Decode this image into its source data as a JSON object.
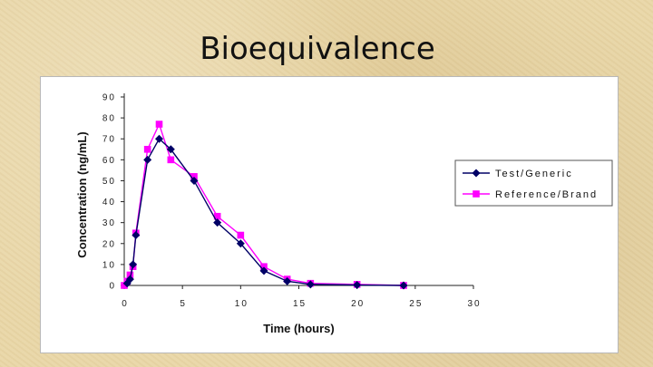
{
  "slide": {
    "title": "Bioequivalence"
  },
  "chart_data": {
    "type": "line",
    "xlabel": "Time (hours)",
    "ylabel": "Concentration (ng/mL)",
    "xlim": [
      0,
      30
    ],
    "ylim": [
      0,
      90
    ],
    "xticks": [
      0,
      5,
      10,
      15,
      20,
      25,
      30
    ],
    "yticks": [
      0,
      10,
      20,
      30,
      40,
      50,
      60,
      70,
      80,
      90
    ],
    "grid": false,
    "legend_position": "right",
    "series": [
      {
        "name": "Test/Generic",
        "color": "#000066",
        "marker": "diamond",
        "points": [
          [
            0.25,
            1
          ],
          [
            0.5,
            3
          ],
          [
            0.75,
            10
          ],
          [
            1,
            24
          ],
          [
            2,
            60
          ],
          [
            3,
            70
          ],
          [
            4,
            65
          ],
          [
            6,
            50
          ],
          [
            8,
            30
          ],
          [
            10,
            20
          ],
          [
            12,
            7
          ],
          [
            14,
            2
          ],
          [
            16,
            0.5
          ],
          [
            20,
            0.2
          ],
          [
            24,
            0
          ]
        ]
      },
      {
        "name": "Reference/Brand",
        "color": "#ff00ff",
        "marker": "square",
        "points": [
          [
            0,
            0
          ],
          [
            0.25,
            2
          ],
          [
            0.5,
            5
          ],
          [
            0.75,
            9
          ],
          [
            1,
            25
          ],
          [
            2,
            65
          ],
          [
            3,
            77
          ],
          [
            4,
            60
          ],
          [
            6,
            52
          ],
          [
            8,
            33
          ],
          [
            10,
            24
          ],
          [
            12,
            9
          ],
          [
            14,
            3
          ],
          [
            16,
            1
          ],
          [
            20,
            0.5
          ],
          [
            24,
            0
          ]
        ]
      }
    ]
  }
}
